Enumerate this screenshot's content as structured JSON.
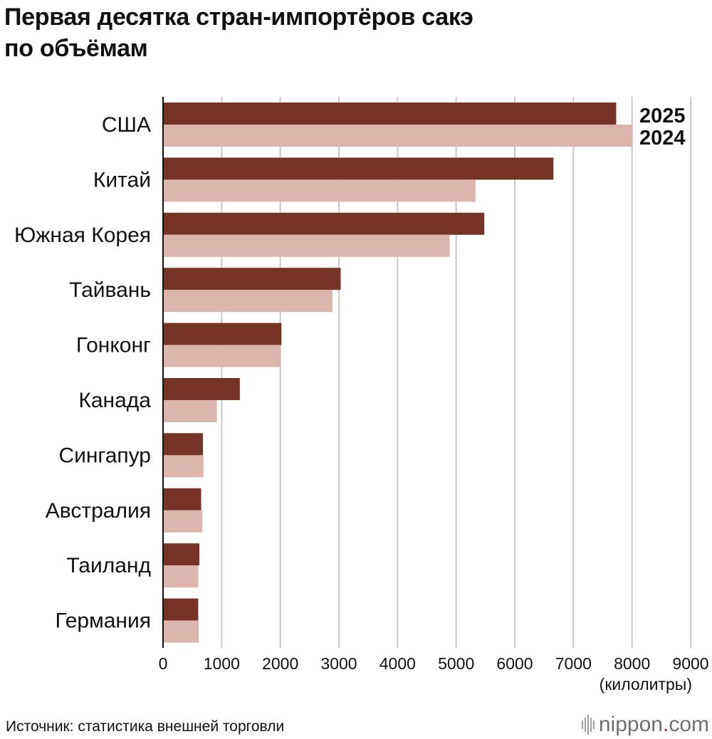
{
  "chart_data": {
    "type": "bar",
    "orientation": "horizontal",
    "title_lines": [
      "Первая десятка стран-импортёров сакэ",
      "по объёмам"
    ],
    "categories": [
      "США",
      "Китай",
      "Южная Корея",
      "Тайвань",
      "Гонконг",
      "Канада",
      "Сингапур",
      "Австралия",
      "Таиланд",
      "Германия"
    ],
    "series": [
      {
        "name": "2025",
        "color": "#763427",
        "values": [
          7730,
          6660,
          5480,
          3030,
          2020,
          1310,
          680,
          650,
          620,
          600
        ]
      },
      {
        "name": "2024",
        "color": "#dcb5ad",
        "values": [
          8010,
          5330,
          4890,
          2890,
          2010,
          920,
          690,
          670,
          600,
          610
        ]
      }
    ],
    "x_ticks": [
      "0",
      "1000",
      "2000",
      "3000",
      "4000",
      "5000",
      "6000",
      "7000",
      "8000",
      "9000"
    ],
    "xlim": [
      0,
      9000
    ],
    "xlabel": "(килолитры)",
    "grid": "vertical",
    "grid_color": "#c8c8c8",
    "legend": "inline-next-to-first-bars"
  },
  "footer": {
    "source": "Источник: статистика внешней торговли",
    "logo_name": "nippon",
    "logo_dot": ".",
    "logo_tld": "com"
  }
}
